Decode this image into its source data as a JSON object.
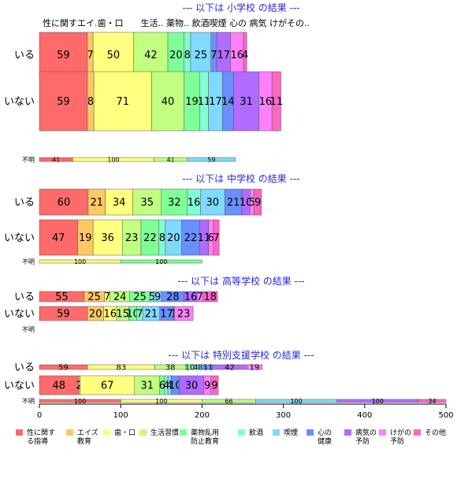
{
  "chart_data": {
    "type": "bar",
    "orientation": "horizontal-stacked",
    "xlim": [
      0,
      500
    ],
    "x_ticks": [
      "0",
      "100",
      "200",
      "300",
      "400",
      "500"
    ],
    "grid": false,
    "legend_position": "bottom",
    "categories": [
      "性に関する指導",
      "エイズ教育",
      "歯・口",
      "生活習慣",
      "薬物乱用防止教育",
      "飲酒",
      "喫煙",
      "心の健康",
      "病気の予防",
      "けがの予防",
      "その他"
    ],
    "legend": [
      {
        "line1": "性に関す",
        "line2": "る指導",
        "color": "#ff6b6b"
      },
      {
        "line1": "エイズ",
        "line2": "教育",
        "color": "#ffc866"
      },
      {
        "line1": "歯・口",
        "line2": "",
        "color": "#ffff80"
      },
      {
        "line1": "生活習慣",
        "line2": "",
        "color": "#c2ff80"
      },
      {
        "line1": "薬物乱用",
        "line2": "防止教育",
        "color": "#80ff99"
      },
      {
        "line1": "飲酒",
        "line2": "",
        "color": "#80ffd6"
      },
      {
        "line1": "喫煙",
        "line2": "",
        "color": "#80d9ff"
      },
      {
        "line1": "心の",
        "line2": "健康",
        "color": "#6a8fff"
      },
      {
        "line1": "病気の",
        "line2": "予防",
        "color": "#b06bff"
      },
      {
        "line1": "けがの",
        "line2": "予防",
        "color": "#ff80ff"
      },
      {
        "line1": "その他",
        "line2": "",
        "color": "#ff66c4"
      }
    ],
    "top_header": "性に関すエイ.歯・口　　生活.. 薬物.. 飲酒喫煙 心の 病気 けがその..",
    "panels": [
      {
        "title": "--- 以下は 小学校 の結果 ---",
        "rows": [
          {
            "label": "いる",
            "values": [
              59,
              7,
              50,
              42,
              20,
              8,
              25,
              7,
              17,
              16,
              4
            ],
            "thickness": "large"
          },
          {
            "label": "いない",
            "values": [
              59,
              8,
              71,
              40,
              19,
              11,
              17,
              14,
              31,
              16,
              11
            ],
            "thickness": "large"
          },
          {
            "label": "不明",
            "values": [
              41,
              0,
              100,
              41,
              0,
              0,
              59,
              0,
              0,
              0,
              0
            ],
            "thickness": "thin"
          }
        ]
      },
      {
        "title": "--- 以下は 中学校 の結果 ---",
        "rows": [
          {
            "label": "いる",
            "values": [
              60,
              21,
              34,
              35,
              32,
              16,
              30,
              21,
              10,
              5,
              9
            ],
            "thickness": "large"
          },
          {
            "label": "いない",
            "values": [
              47,
              19,
              36,
              23,
              22,
              8,
              20,
              22,
              11,
              6,
              7
            ],
            "thickness": "large"
          },
          {
            "label": "不明",
            "values": [
              0,
              0,
              100,
              0,
              100,
              0,
              0,
              0,
              0,
              0,
              0
            ],
            "thickness": "thin"
          }
        ]
      },
      {
        "title": "--- 以下は 高等学校 の結果 ---",
        "rows": [
          {
            "label": "いる",
            "values": [
              55,
              25,
              7,
              24,
              25,
              5,
              9,
              28,
              16,
              7,
              18
            ],
            "thickness": "medium"
          },
          {
            "label": "いない",
            "values": [
              59,
              20,
              16,
              15,
              10,
              7,
              21,
              17,
              1,
              23,
              0
            ],
            "thickness": "medium"
          },
          {
            "label": "不明",
            "values": [
              0,
              0,
              0,
              0,
              0,
              0,
              0,
              0,
              0,
              0,
              0
            ],
            "thickness": "none"
          }
        ]
      },
      {
        "title": "--- 以下は 特別支援学校 の結果 ---",
        "rows": [
          {
            "label": "いる",
            "values": [
              59,
              0,
              83,
              38,
              10,
              4,
              8,
              11,
              42,
              19,
              0
            ],
            "thickness": "small"
          },
          {
            "label": "いない",
            "values": [
              48,
              2,
              67,
              31,
              6,
              4,
              4,
              10,
              30,
              9,
              9
            ],
            "thickness": "medium"
          },
          {
            "label": "不明",
            "values": [
              100,
              0,
              100,
              66,
              0,
              0,
              100,
              0,
              100,
              0,
              34
            ],
            "thickness": "thin"
          }
        ]
      }
    ]
  }
}
